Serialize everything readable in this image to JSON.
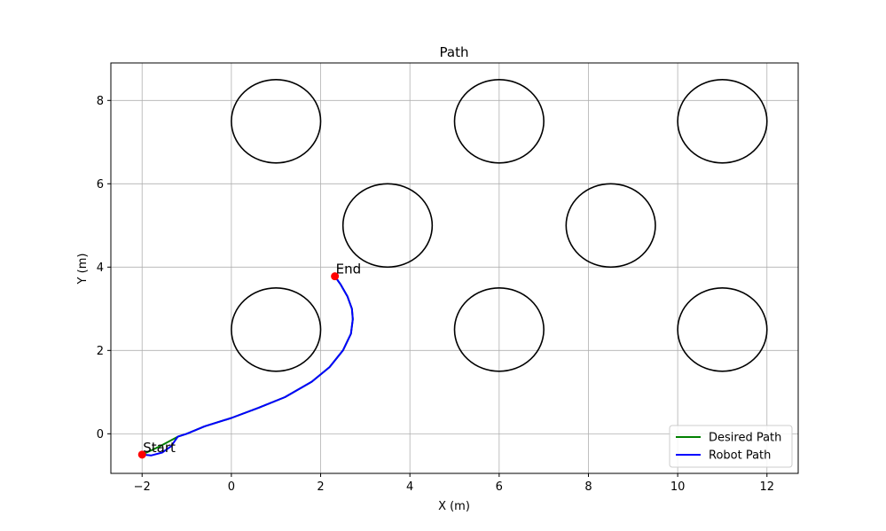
{
  "chart_data": {
    "type": "line",
    "title": "Path",
    "xlabel": "X (m)",
    "ylabel": "Y (m)",
    "xlim": [
      -2.7,
      12.7
    ],
    "ylim": [
      -0.95,
      8.9
    ],
    "xticks": [
      -2,
      0,
      2,
      4,
      6,
      8,
      10,
      12
    ],
    "yticks": [
      0,
      2,
      4,
      6,
      8
    ],
    "grid": true,
    "legend_position": "bottom-right",
    "obstacles": [
      {
        "cx": 1.0,
        "cy": 7.5,
        "r": 1.0
      },
      {
        "cx": 6.0,
        "cy": 7.5,
        "r": 1.0
      },
      {
        "cx": 11.0,
        "cy": 7.5,
        "r": 1.0
      },
      {
        "cx": 3.5,
        "cy": 5.0,
        "r": 1.0
      },
      {
        "cx": 8.5,
        "cy": 5.0,
        "r": 1.0
      },
      {
        "cx": 1.0,
        "cy": 2.5,
        "r": 1.0
      },
      {
        "cx": 6.0,
        "cy": 2.5,
        "r": 1.0
      },
      {
        "cx": 11.0,
        "cy": 2.5,
        "r": 1.0
      }
    ],
    "series": [
      {
        "name": "Desired Path",
        "color": "#008000",
        "x": [
          -2.0,
          -1.6,
          -1.2,
          -1.0,
          -0.6,
          0.0,
          0.6,
          1.2,
          1.8,
          2.2,
          2.5,
          2.68,
          2.72,
          2.7,
          2.6,
          2.45,
          2.32
        ],
        "y": [
          -0.5,
          -0.3,
          -0.07,
          0.0,
          0.18,
          0.38,
          0.62,
          0.88,
          1.25,
          1.6,
          2.0,
          2.4,
          2.75,
          3.0,
          3.3,
          3.58,
          3.78
        ]
      },
      {
        "name": "Robot Path",
        "color": "#0000ff",
        "x": [
          -2.0,
          -1.8,
          -1.55,
          -1.35,
          -1.2,
          -1.0,
          -0.6,
          0.0,
          0.6,
          1.2,
          1.8,
          2.2,
          2.5,
          2.68,
          2.72,
          2.7,
          2.6,
          2.45,
          2.32
        ],
        "y": [
          -0.5,
          -0.52,
          -0.45,
          -0.3,
          -0.07,
          0.0,
          0.18,
          0.38,
          0.62,
          0.88,
          1.25,
          1.6,
          2.0,
          2.4,
          2.75,
          3.0,
          3.3,
          3.58,
          3.78
        ]
      }
    ],
    "markers": [
      {
        "label": "Start",
        "x": -2.0,
        "y": -0.5,
        "color": "#ff0000"
      },
      {
        "label": "End",
        "x": 2.32,
        "y": 3.78,
        "color": "#ff0000"
      }
    ]
  }
}
